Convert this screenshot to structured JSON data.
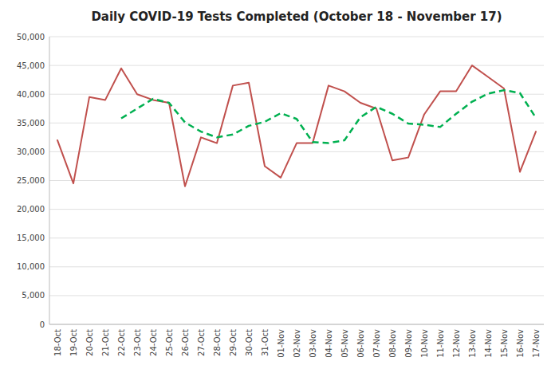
{
  "chart_data": {
    "type": "line",
    "title": "Daily COVID-19 Tests Completed (October 18 - November 17)",
    "categories": [
      "18-Oct",
      "19-Oct",
      "20-Oct",
      "21-Oct",
      "22-Oct",
      "23-Oct",
      "24-Oct",
      "25-Oct",
      "26-Oct",
      "27-Oct",
      "28-Oct",
      "29-Oct",
      "30-Oct",
      "31-Oct",
      "01-Nov",
      "02-Nov",
      "03-Nov",
      "04-Nov",
      "05-Nov",
      "06-Nov",
      "07-Nov",
      "08-Nov",
      "09-Nov",
      "10-Nov",
      "11-Nov",
      "12-Nov",
      "13-Nov",
      "14-Nov",
      "15-Nov",
      "16-Nov",
      "17-Nov"
    ],
    "series": [
      {
        "color": "#c0504d",
        "line_style": "solid",
        "values": [
          32000,
          24500,
          39500,
          39000,
          44500,
          40000,
          39000,
          38500,
          24000,
          32500,
          31500,
          41500,
          42000,
          27500,
          25500,
          31500,
          31500,
          41500,
          40500,
          38500,
          37500,
          28500,
          29000,
          36500,
          40500,
          40500,
          45000,
          43000,
          41000,
          26500,
          33500
        ]
      },
      {
        "color": "#00b050",
        "line_style": "dashed",
        "values": [
          null,
          null,
          null,
          null,
          35800,
          37500,
          39200,
          38500,
          35100,
          33500,
          32500,
          33000,
          34500,
          35200,
          36700,
          35700,
          31700,
          31500,
          32000,
          36000,
          37800,
          36600,
          34900,
          34700,
          34300,
          36600,
          38700,
          40100,
          40700,
          40200,
          35900
        ]
      }
    ],
    "ylim": [
      0,
      50000
    ],
    "yticks": [
      0,
      {
        "value": 5000,
        "label": "5,000"
      },
      {
        "value": 10000,
        "label": "10,000"
      },
      {
        "value": 15000,
        "label": "15,000"
      },
      {
        "value": 20000,
        "label": "20,000"
      },
      {
        "value": 25000,
        "label": "25,000"
      },
      {
        "value": 30000,
        "label": "30,000"
      },
      {
        "value": 35000,
        "label": "35,000"
      },
      {
        "value": 40000,
        "label": "40,000"
      },
      {
        "value": 45000,
        "label": "45,000"
      },
      {
        "value": 50000,
        "label": "50,000"
      }
    ],
    "grid": true
  }
}
